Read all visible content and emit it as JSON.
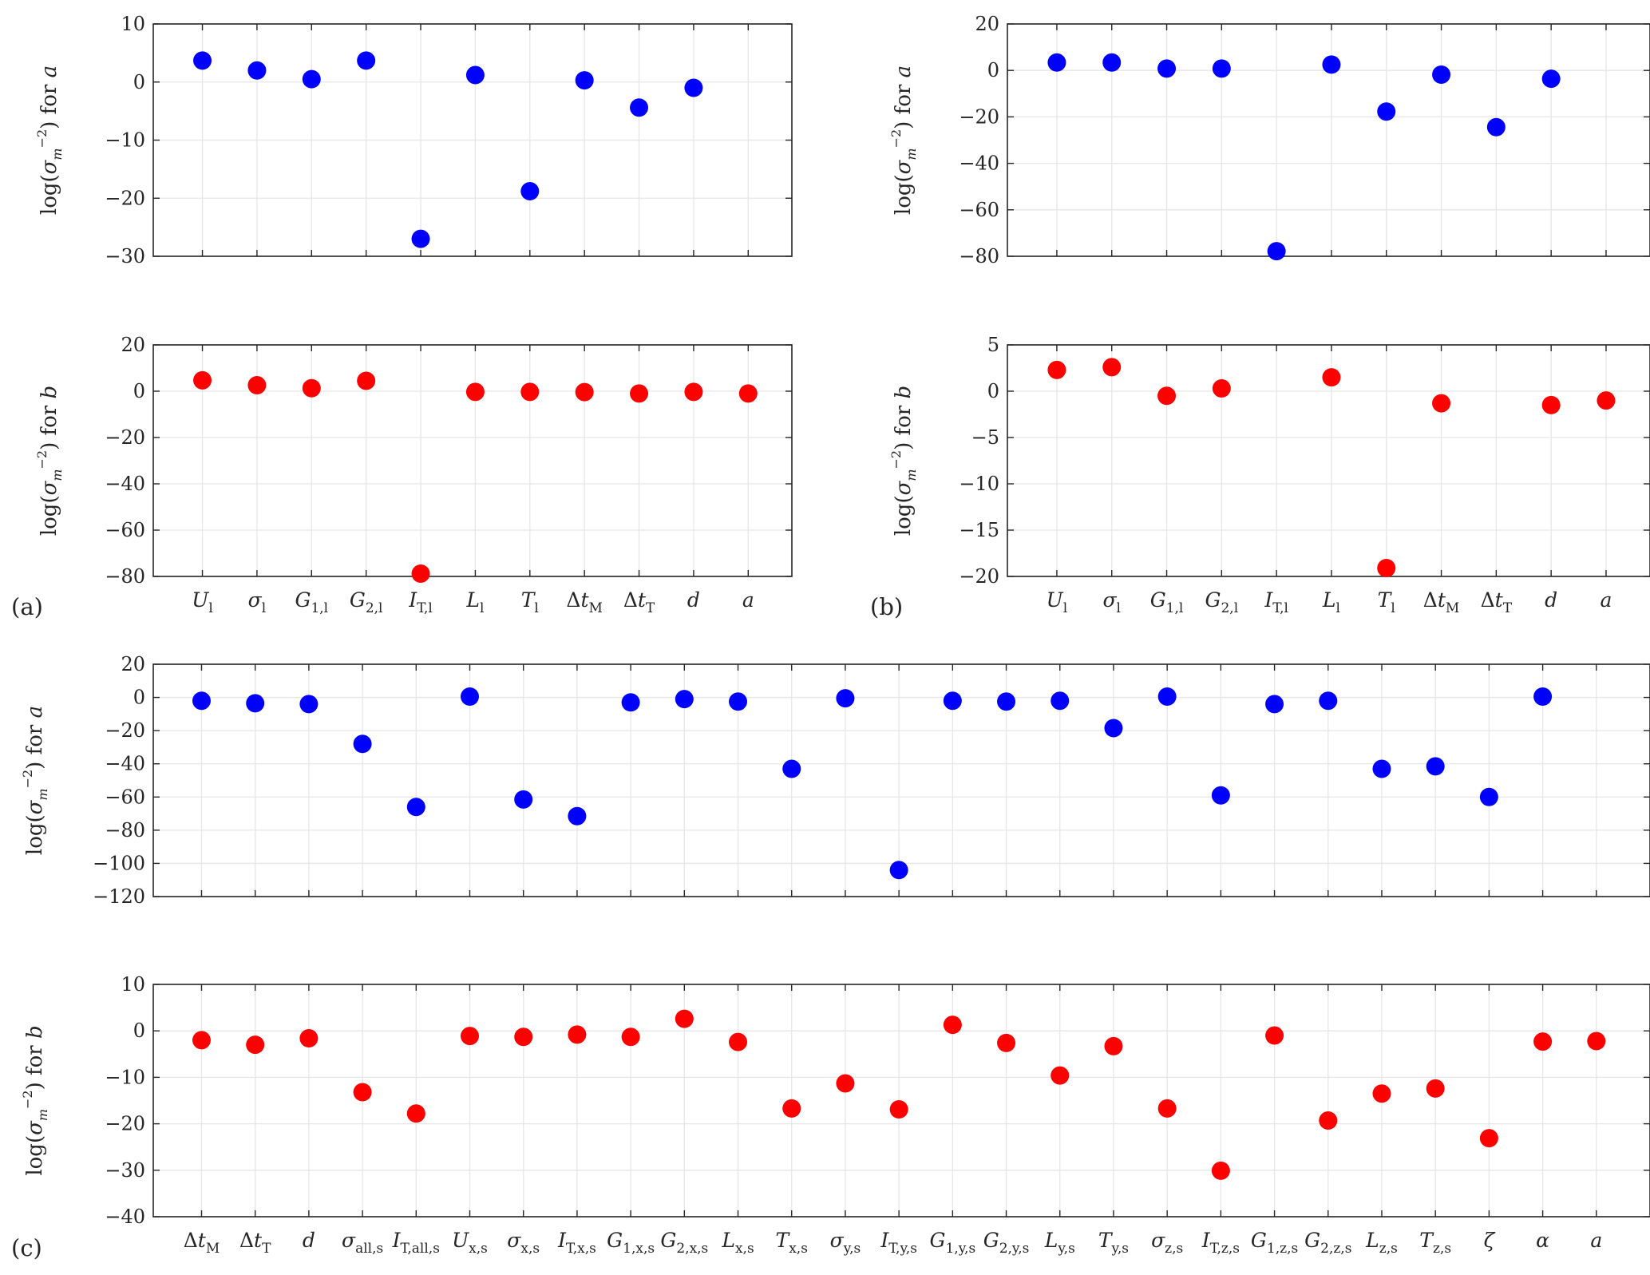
{
  "panel_labels": [
    "(a)",
    "(b)",
    "(c)"
  ],
  "colors": {
    "a": "#0000ff",
    "b": "#ff0000",
    "axis": "#262626",
    "grid": "#e6e6e6"
  },
  "chart_data": [
    {
      "type": "scatter",
      "panel": "(a)",
      "ylabel": "log(σm⁻²) for a",
      "ylim": [
        -30,
        10
      ],
      "yticks": [
        -30,
        -20,
        -10,
        0,
        10
      ],
      "grid": true,
      "categories": [
        "U_l",
        "σ_l",
        "G_1,l",
        "G_2,l",
        "I_T,l",
        "L_l",
        "T_l",
        "Δt_M",
        "Δt_T",
        "d",
        "a"
      ],
      "values": [
        3.7,
        2.0,
        0.5,
        3.7,
        -27.0,
        1.2,
        -18.8,
        0.3,
        -4.4,
        -1.0,
        null
      ],
      "marker_color": "#0000ff",
      "show_xticklabels": false
    },
    {
      "type": "scatter",
      "panel": "(a)",
      "ylabel": "log(σm⁻²) for b",
      "ylim": [
        -80,
        20
      ],
      "yticks": [
        -80,
        -60,
        -40,
        -20,
        0,
        20
      ],
      "grid": true,
      "categories": [
        "U_l",
        "σ_l",
        "G_1,l",
        "G_2,l",
        "I_T,l",
        "L_l",
        "T_l",
        "Δt_M",
        "Δt_T",
        "d",
        "a"
      ],
      "values": [
        4.7,
        2.6,
        1.3,
        4.5,
        -78.8,
        -0.3,
        -0.3,
        -0.4,
        -1.0,
        -0.3,
        -1.0
      ],
      "marker_color": "#ff0000",
      "show_xticklabels": true
    },
    {
      "type": "scatter",
      "panel": "(b)",
      "ylabel": "log(σm⁻²) for a",
      "ylim": [
        -80,
        20
      ],
      "yticks": [
        -80,
        -60,
        -40,
        -20,
        0,
        20
      ],
      "grid": true,
      "categories": [
        "U_l",
        "σ_l",
        "G_1,l",
        "G_2,l",
        "I_T,l",
        "L_l",
        "T_l",
        "Δt_M",
        "Δt_T",
        "d",
        "a"
      ],
      "values": [
        3.4,
        3.4,
        0.8,
        0.8,
        -77.8,
        2.5,
        -17.7,
        -1.8,
        -24.4,
        -3.6,
        null
      ],
      "marker_color": "#0000ff",
      "show_xticklabels": false
    },
    {
      "type": "scatter",
      "panel": "(b)",
      "ylabel": "log(σm⁻²) for b",
      "ylim": [
        -20,
        5
      ],
      "yticks": [
        -20,
        -15,
        -10,
        -5,
        0,
        5
      ],
      "grid": true,
      "categories": [
        "U_l",
        "σ_l",
        "G_1,l",
        "G_2,l",
        "I_T,l",
        "L_l",
        "T_l",
        "Δt_M",
        "Δt_T",
        "d",
        "a"
      ],
      "values": [
        2.3,
        2.6,
        -0.5,
        0.3,
        null,
        1.5,
        -19.1,
        -1.3,
        null,
        -1.5,
        -1.0
      ],
      "marker_color": "#ff0000",
      "show_xticklabels": true
    },
    {
      "type": "scatter",
      "panel": "(c)",
      "ylabel": "log(σm⁻²) for a",
      "ylim": [
        -120,
        20
      ],
      "yticks": [
        -120,
        -100,
        -80,
        -60,
        -40,
        -20,
        0,
        20
      ],
      "grid": true,
      "categories": [
        "Δt_M",
        "Δt_T",
        "d",
        "σ_all,s",
        "I_T,all,s",
        "U_x,s",
        "σ_x,s",
        "I_T,x,s",
        "G_1,x,s",
        "G_2,x,s",
        "L_x,s",
        "T_x,s",
        "σ_y,s",
        "I_T,y,s",
        "G_1,y,s",
        "G_2,y,s",
        "L_y,s",
        "T_y,s",
        "σ_z,s",
        "I_T,z,s",
        "G_1,z,s",
        "G_2,z,s",
        "L_z,s",
        "T_z,s",
        "ζ",
        "α",
        "a"
      ],
      "values": [
        -2.0,
        -3.5,
        -4.0,
        -28.0,
        -66.0,
        0.5,
        -61.5,
        -71.5,
        -3.0,
        -1.0,
        -2.5,
        -43.0,
        -0.5,
        -104.0,
        -2.0,
        -2.5,
        -2.0,
        -18.5,
        0.5,
        -59.0,
        -4.0,
        -2.0,
        -43.0,
        -41.5,
        -60.0,
        0.5,
        null
      ],
      "marker_color": "#0000ff",
      "show_xticklabels": false
    },
    {
      "type": "scatter",
      "panel": "(c)",
      "ylabel": "log(σm⁻²) for b",
      "ylim": [
        -40,
        10
      ],
      "yticks": [
        -40,
        -30,
        -20,
        -10,
        0,
        10
      ],
      "grid": true,
      "categories": [
        "Δt_M",
        "Δt_T",
        "d",
        "σ_all,s",
        "I_T,all,s",
        "U_x,s",
        "σ_x,s",
        "I_T,x,s",
        "G_1,x,s",
        "G_2,x,s",
        "L_x,s",
        "T_x,s",
        "σ_y,s",
        "I_T,y,s",
        "G_1,y,s",
        "G_2,y,s",
        "L_y,s",
        "T_y,s",
        "σ_z,s",
        "I_T,z,s",
        "G_1,z,s",
        "G_2,z,s",
        "L_z,s",
        "T_z,s",
        "ζ",
        "α",
        "a"
      ],
      "values": [
        -2.0,
        -3.0,
        -1.6,
        -13.2,
        -17.8,
        -1.1,
        -1.3,
        -0.8,
        -1.3,
        2.6,
        -2.4,
        -16.7,
        -11.3,
        -16.9,
        1.3,
        -2.6,
        -9.6,
        -3.3,
        -16.7,
        -30.1,
        -1.0,
        -19.3,
        -13.5,
        -12.4,
        -23.1,
        -2.3,
        -2.2
      ],
      "marker_color": "#ff0000",
      "show_xticklabels": true
    }
  ]
}
